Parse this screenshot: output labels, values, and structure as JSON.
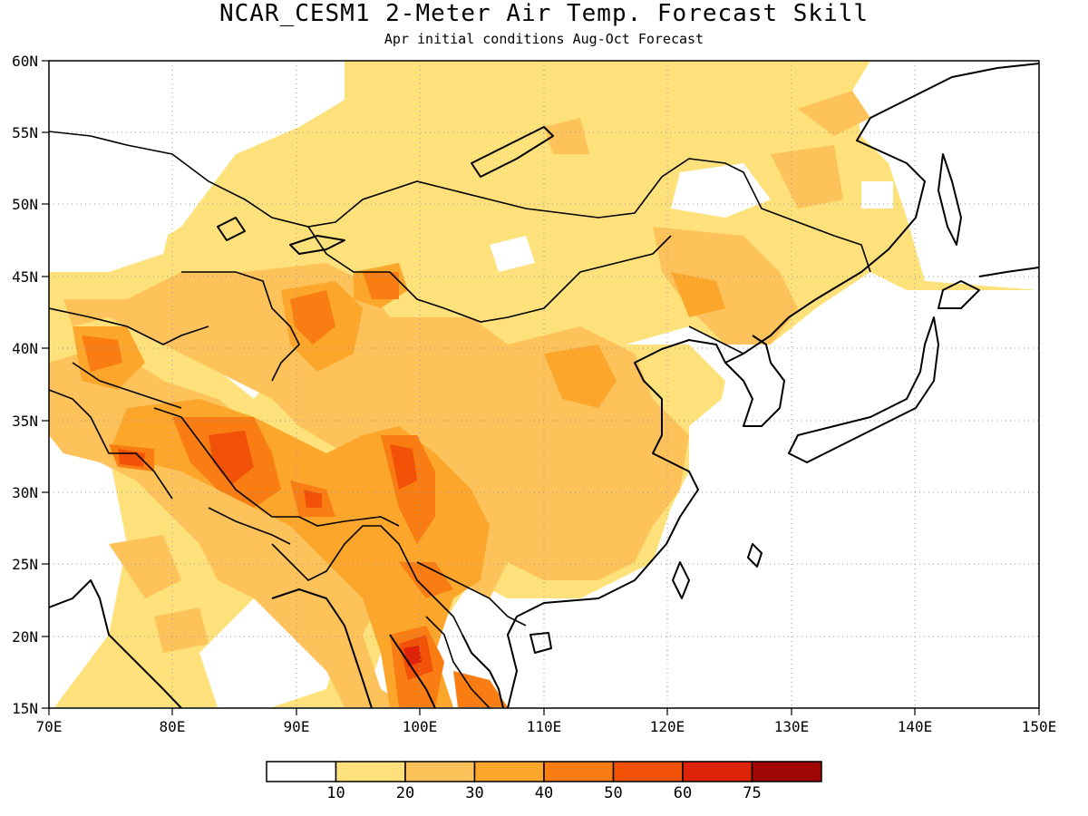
{
  "title": "NCAR_CESM1 2-Meter Air Temp. Forecast Skill",
  "subtitle": "Apr initial conditions  Aug-Oct Forecast",
  "axes": {
    "lon_ticks": [
      "70E",
      "80E",
      "90E",
      "100E",
      "110E",
      "120E",
      "130E",
      "140E",
      "150E"
    ],
    "lat_ticks": [
      "15N",
      "20N",
      "25N",
      "30N",
      "35N",
      "40N",
      "45N",
      "50N",
      "55N",
      "60N"
    ]
  },
  "colorbar": {
    "labels": [
      "10",
      "20",
      "30",
      "40",
      "50",
      "60",
      "75"
    ],
    "colors": [
      "#ffffff",
      "#fee17a",
      "#fdc25a",
      "#fca62b",
      "#f97d12",
      "#f25108",
      "#dd2309",
      "#a00704"
    ]
  }
}
